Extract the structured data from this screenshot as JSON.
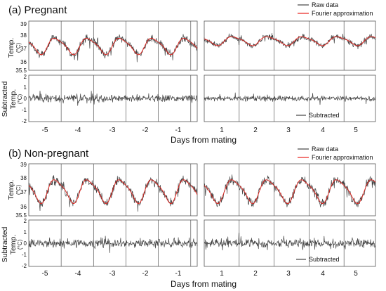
{
  "chart_data": [
    {
      "type": "line",
      "panel": "(a) Pregnant",
      "title": "(a) Pregnant",
      "xlabel": "Days from mating",
      "x_left_ticks": [
        "-5",
        "-4",
        "-3",
        "-2",
        "-1"
      ],
      "x_right_ticks": [
        "1",
        "2",
        "3",
        "4",
        "5"
      ],
      "top": {
        "ylabel": "Temp.",
        "yunit": "(°C)",
        "ylim": [
          35.5,
          39
        ],
        "yticks": [
          "36",
          "37",
          "38",
          "39"
        ],
        "ytick_extra": "35.5",
        "legend": [
          "Raw data",
          "Fourier approximation"
        ],
        "series": [
          {
            "name": "Raw data",
            "color": "#444444"
          },
          {
            "name": "Fourier approximation",
            "color": "#e8201a"
          }
        ],
        "left": {
          "base": 37.25,
          "amp": 0.55,
          "noise": 0.45,
          "xs": [
            -5.55,
            -0.35
          ]
        },
        "right": {
          "base": 37.6,
          "amp": 0.3,
          "noise": 0.35,
          "xs": [
            0.45,
            5.45
          ]
        }
      },
      "bottom": {
        "ylabel": "Subtracted",
        "ylabel2": "Temp.",
        "yunit": "(°C)",
        "ylim": [
          -2,
          2
        ],
        "yticks": [
          "-2",
          "-1",
          "0",
          "1",
          "2"
        ],
        "legend": [
          "Subtracted"
        ],
        "series": [
          {
            "name": "Subtracted",
            "color": "#444444"
          }
        ],
        "left_noise": 0.45,
        "right_noise": 0.3
      }
    },
    {
      "type": "line",
      "panel": "(b) Non-pregnant",
      "title": "(b) Non-pregnant",
      "xlabel": "Days from mating",
      "x_left_ticks": [
        "-5",
        "-4",
        "-3",
        "-2",
        "-1"
      ],
      "x_right_ticks": [
        "1",
        "2",
        "3",
        "4",
        "5"
      ],
      "top": {
        "ylabel": "Temp.",
        "yunit": "(°C)",
        "ylim": [
          35.5,
          39
        ],
        "yticks": [
          "36",
          "37",
          "38",
          "39"
        ],
        "ytick_extra": "35.5",
        "legend": [
          "Raw data",
          "Fourier approximation"
        ],
        "series": [
          {
            "name": "Raw data",
            "color": "#444444"
          },
          {
            "name": "Fourier approximation",
            "color": "#e8201a"
          }
        ],
        "left": {
          "base": 37.2,
          "amp": 0.75,
          "noise": 0.55,
          "xs": [
            -5.55,
            -0.35
          ]
        },
        "right": {
          "base": 37.2,
          "amp": 0.75,
          "noise": 0.55,
          "xs": [
            0.45,
            5.45
          ]
        }
      },
      "bottom": {
        "ylabel": "Subtracted",
        "ylabel2": "Temp.",
        "yunit": "(°C)",
        "ylim": [
          -2,
          2
        ],
        "yticks": [
          "-2",
          "-1",
          "0",
          "1",
          "2"
        ],
        "legend": [
          "Subtracted"
        ],
        "series": [
          {
            "name": "Subtracted",
            "color": "#444444"
          }
        ],
        "left_noise": 0.5,
        "right_noise": 0.5
      }
    }
  ]
}
